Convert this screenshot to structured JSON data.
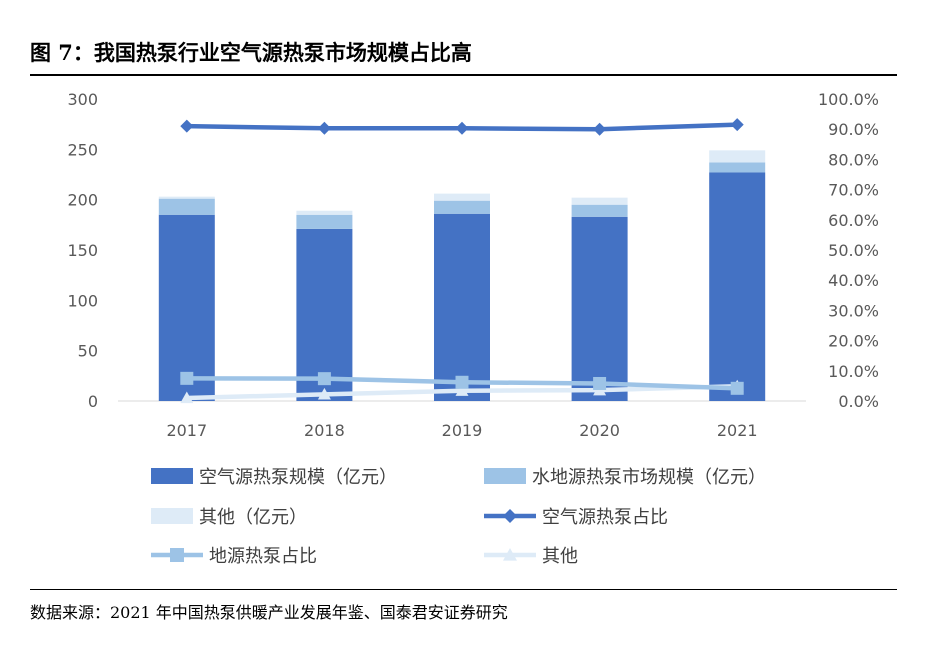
{
  "title": "图 7：我国热泵行业空气源热泵市场规模占比高",
  "source": "数据来源：2021 年中国热泵供暖产业发展年鉴、国泰君安证券研究",
  "chart_data": {
    "type": "bar",
    "stacked": true,
    "categories": [
      "2017",
      "2018",
      "2019",
      "2020",
      "2021"
    ],
    "series": [
      {
        "name": "空气源热泵规模（亿元）",
        "kind": "bar",
        "axis": "left",
        "color": "#4472C4",
        "values": [
          185,
          171,
          186,
          183,
          227
        ]
      },
      {
        "name": "水地源热泵市场规模（亿元）",
        "kind": "bar",
        "axis": "left",
        "color": "#9DC3E6",
        "values": [
          16,
          14,
          13,
          12,
          10
        ]
      },
      {
        "name": "其他（亿元）",
        "kind": "bar",
        "axis": "left",
        "color": "#DEEBF7",
        "values": [
          2,
          4,
          7,
          7,
          12
        ]
      },
      {
        "name": "空气源热泵占比",
        "kind": "line",
        "axis": "right",
        "color": "#4472C4",
        "marker": "diamond",
        "values": [
          91.0,
          90.3,
          90.3,
          90.0,
          91.5
        ]
      },
      {
        "name": "地源热泵占比",
        "kind": "line",
        "axis": "right",
        "color": "#9DC3E6",
        "marker": "square",
        "values": [
          7.5,
          7.4,
          6.2,
          5.8,
          4.2
        ]
      },
      {
        "name": "其他",
        "kind": "line",
        "axis": "right",
        "color": "#DEEBF7",
        "marker": "triangle",
        "values": [
          1.0,
          2.2,
          3.4,
          3.6,
          4.9
        ]
      }
    ],
    "y_left": {
      "min": 0,
      "max": 300,
      "ticks": [
        "0",
        "50",
        "100",
        "150",
        "200",
        "250",
        "300"
      ]
    },
    "y_right": {
      "min": 0,
      "max": 100,
      "ticks": [
        "0.0%",
        "10.0%",
        "20.0%",
        "30.0%",
        "40.0%",
        "50.0%",
        "60.0%",
        "70.0%",
        "80.0%",
        "90.0%",
        "100.0%"
      ]
    },
    "legend_position": "bottom",
    "gridlines": false
  }
}
